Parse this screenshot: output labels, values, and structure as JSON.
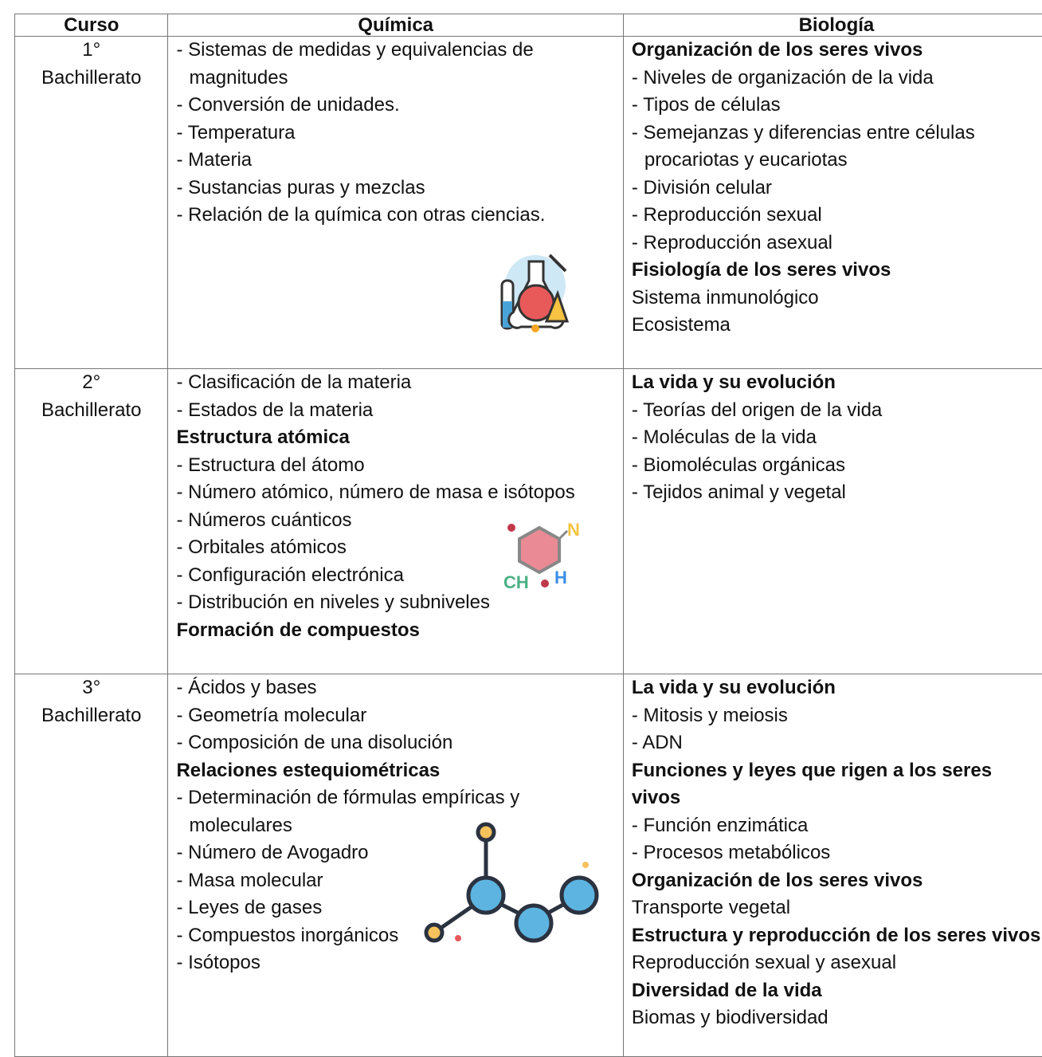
{
  "table": {
    "headers": [
      "Curso",
      "Química",
      "Biología"
    ],
    "rows": [
      {
        "level": "1°",
        "label": "Bachillerato",
        "quimica": [
          {
            "item": "- Sistemas de medidas y equivalencias de magnitudes"
          },
          {
            "item": "- Conversión de unidades."
          },
          {
            "item": "- Temperatura"
          },
          {
            "item": "- Materia"
          },
          {
            "item": "- Sustancias puras y mezclas"
          },
          {
            "item": "- Relación de la química con otras ciencias."
          }
        ],
        "biologia": [
          {
            "heading": "Organización de los seres vivos"
          },
          {
            "item": "- Niveles de organización de la vida"
          },
          {
            "item": "- Tipos de células"
          },
          {
            "item": "- Semejanzas y diferencias entre células procariotas y eucariotas"
          },
          {
            "item": "- División celular"
          },
          {
            "item": "- Reproducción sexual"
          },
          {
            "item": "- Reproducción asexual"
          },
          {
            "heading": "Fisiología de los seres vivos"
          },
          {
            "text": "Sistema inmunológico"
          },
          {
            "text": "Ecosistema"
          }
        ]
      },
      {
        "level": "2°",
        "label": "Bachillerato",
        "quimica": [
          {
            "item": "- Clasificación de la materia"
          },
          {
            "item": "- Estados de la materia"
          },
          {
            "heading": "Estructura atómica"
          },
          {
            "item": "- Estructura del átomo"
          },
          {
            "item": "- Número atómico, número de masa e isótopos"
          },
          {
            "item": "- Números cuánticos"
          },
          {
            "item": "- Orbitales atómicos"
          },
          {
            "item": "- Configuración electrónica"
          },
          {
            "item": "- Distribución en niveles y subniveles"
          },
          {
            "heading": "Formación de compuestos"
          }
        ],
        "biologia": [
          {
            "heading": "La vida y su evolución"
          },
          {
            "item": "- Teorías del origen de la vida"
          },
          {
            "item": "- Moléculas de la vida"
          },
          {
            "item": "- Biomoléculas orgánicas"
          },
          {
            "item": "- Tejidos animal y vegetal"
          }
        ]
      },
      {
        "level": "3°",
        "label": "Bachillerato",
        "quimica": [
          {
            "item": "- Ácidos y bases"
          },
          {
            "item": "- Geometría molecular"
          },
          {
            "item": "- Composición de una disolución"
          },
          {
            "heading": "Relaciones estequiométricas"
          },
          {
            "item": "- Determinación de fórmulas empíricas y moleculares"
          },
          {
            "item": "- Número de Avogadro"
          },
          {
            "item": "- Masa molecular"
          },
          {
            "item": "- Leyes de gases"
          },
          {
            "item": "- Compuestos inorgánicos"
          },
          {
            "item": "- Isótopos"
          }
        ],
        "biologia": [
          {
            "heading": "La vida y su evolución"
          },
          {
            "item": "- Mitosis y meiosis"
          },
          {
            "item": "- ADN"
          },
          {
            "heading": "Funciones y leyes que rigen a los seres vivos"
          },
          {
            "item": "- Función enzimática"
          },
          {
            "item": "- Procesos metabólicos"
          },
          {
            "heading": "Organización de los seres vivos"
          },
          {
            "text": "Transporte vegetal"
          },
          {
            "heading": "Estructura y reproducción de los seres vivos"
          },
          {
            "text": "Reproducción sexual y asexual"
          },
          {
            "heading": "Diversidad de la vida"
          },
          {
            "text": "Biomas y biodiversidad"
          }
        ]
      }
    ]
  }
}
